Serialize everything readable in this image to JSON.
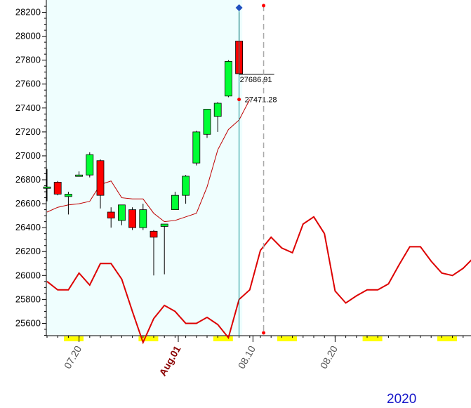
{
  "chart_data": {
    "type": "candlestick",
    "ylim": [
      25450,
      28250
    ],
    "y_ticks": [
      25600,
      25800,
      26000,
      26200,
      26400,
      26600,
      26800,
      27000,
      27200,
      27400,
      27600,
      27800,
      28000,
      28200
    ],
    "x_tick_labels": [
      {
        "label": "07.20",
        "index": 3.0,
        "emphasis": false
      },
      {
        "label": "Aug.01",
        "index": 12.3,
        "emphasis": true
      },
      {
        "label": "08.10",
        "index": 19.3,
        "emphasis": false
      },
      {
        "label": "08.20",
        "index": 27.0,
        "emphasis": false
      }
    ],
    "year_label": "2020",
    "colors": {
      "up": "#00ff33",
      "down": "#ff0000",
      "moving_average": "#c00000",
      "lagging_line": "#dd0000",
      "plot_background": "#effefe",
      "cursor": "#008b8b",
      "tick_marker": "#ffff00"
    },
    "candles": [
      {
        "o": 26740,
        "h": 26890,
        "l": 26620,
        "c": 26740
      },
      {
        "o": 26780,
        "h": 26790,
        "l": 26670,
        "c": 26680
      },
      {
        "o": 26660,
        "h": 26700,
        "l": 26510,
        "c": 26680
      },
      {
        "o": 26840,
        "h": 26870,
        "l": 26840,
        "c": 26840
      },
      {
        "o": 26840,
        "h": 27030,
        "l": 26820,
        "c": 27010
      },
      {
        "o": 26960,
        "h": 26970,
        "l": 26560,
        "c": 26670
      },
      {
        "o": 26530,
        "h": 26570,
        "l": 26400,
        "c": 26480
      },
      {
        "o": 26460,
        "h": 26590,
        "l": 26420,
        "c": 26590
      },
      {
        "o": 26550,
        "h": 26570,
        "l": 26380,
        "c": 26400
      },
      {
        "o": 26400,
        "h": 26600,
        "l": 26380,
        "c": 26550
      },
      {
        "o": 26370,
        "h": 26380,
        "l": 26000,
        "c": 26320
      },
      {
        "o": 26410,
        "h": 26430,
        "l": 26010,
        "c": 26430
      },
      {
        "o": 26550,
        "h": 26700,
        "l": 26550,
        "c": 26670
      },
      {
        "o": 26670,
        "h": 26840,
        "l": 26600,
        "c": 26830
      },
      {
        "o": 26940,
        "h": 27210,
        "l": 26920,
        "c": 27200
      },
      {
        "o": 27180,
        "h": 27390,
        "l": 27150,
        "c": 27390
      },
      {
        "o": 27330,
        "h": 27450,
        "l": 27200,
        "c": 27440
      },
      {
        "o": 27500,
        "h": 27800,
        "l": 27490,
        "c": 27790
      },
      {
        "o": 27960,
        "h": 28200,
        "l": 27680,
        "c": 27686.91
      }
    ],
    "moving_average": [
      26530,
      26570,
      26590,
      26600,
      26620,
      26760,
      26790,
      26650,
      26640,
      26640,
      26520,
      26450,
      26460,
      26490,
      26520,
      26740,
      27050,
      27220,
      27300,
      27471.28
    ],
    "lagging_line": [
      [
        0,
        25950
      ],
      [
        1,
        25880
      ],
      [
        2,
        25880
      ],
      [
        3,
        26020
      ],
      [
        4,
        25920
      ],
      [
        5,
        26100
      ],
      [
        6,
        26100
      ],
      [
        7,
        25970
      ],
      [
        8,
        25700
      ],
      [
        9,
        25440
      ],
      [
        10,
        25640
      ],
      [
        11,
        25750
      ],
      [
        12,
        25700
      ],
      [
        13,
        25600
      ],
      [
        14,
        25600
      ],
      [
        15,
        25650
      ],
      [
        16,
        25590
      ],
      [
        17,
        25480
      ],
      [
        18,
        25800
      ],
      [
        19,
        25880
      ],
      [
        20,
        26210
      ],
      [
        21,
        26320
      ],
      [
        22,
        26230
      ],
      [
        23,
        26190
      ],
      [
        24,
        26430
      ],
      [
        25,
        26490
      ],
      [
        26,
        26350
      ],
      [
        27,
        25870
      ],
      [
        28,
        25770
      ],
      [
        29,
        25830
      ],
      [
        30,
        25880
      ],
      [
        31,
        25880
      ],
      [
        32,
        25930
      ],
      [
        33,
        26090
      ],
      [
        34,
        26240
      ],
      [
        35,
        26240
      ],
      [
        36,
        26120
      ],
      [
        37,
        26020
      ],
      [
        38,
        26000
      ],
      [
        39,
        26060
      ],
      [
        40,
        26150
      ]
    ],
    "annotations": {
      "last_close": "27686.91",
      "moving_average_last": "27471.28"
    },
    "shaded_until_index": 18.3,
    "dashed_marker_index": 20.3
  }
}
